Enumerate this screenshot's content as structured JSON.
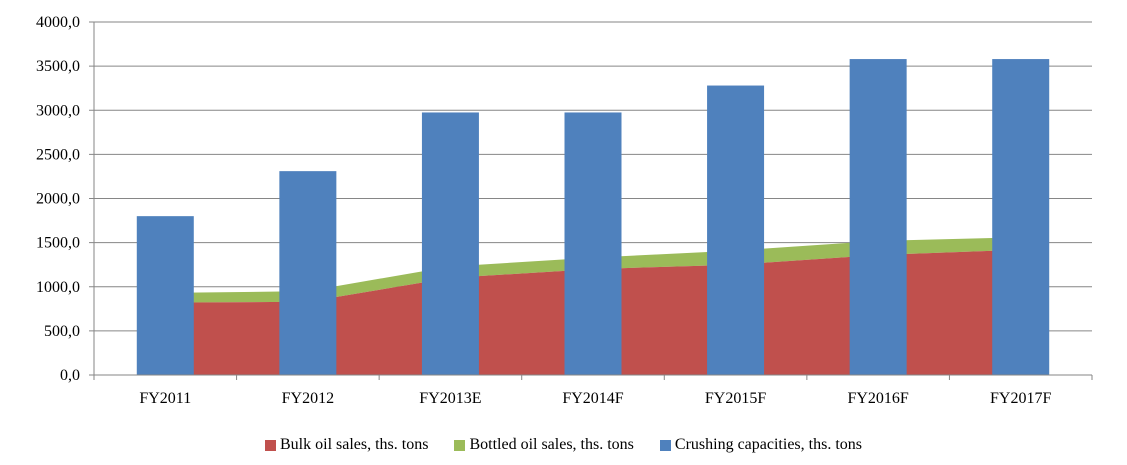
{
  "chart_data": {
    "type": "bar",
    "categories": [
      "FY2011",
      "FY2012",
      "FY2013E",
      "FY2014F",
      "FY2015F",
      "FY2016F",
      "FY2017F"
    ],
    "series": [
      {
        "name": "Bulk oil sales, ths. tons",
        "chart_type": "area",
        "color": "#C0504D",
        "values": [
          820,
          830,
          1100,
          1200,
          1250,
          1360,
          1420
        ]
      },
      {
        "name": "Bottled oil sales, ths. tons",
        "chart_type": "area",
        "color": "#9BBB59",
        "values": [
          110,
          120,
          130,
          130,
          160,
          160,
          140
        ]
      },
      {
        "name": "Crushing capacities, ths. tons",
        "chart_type": "bar",
        "color": "#4F81BD",
        "values": [
          1800,
          2310,
          2975,
          2975,
          3280,
          3580,
          3580
        ]
      }
    ],
    "stacked_areas": true,
    "yticks": [
      "0,0",
      "500,0",
      "1000,0",
      "1500,0",
      "2000,0",
      "2500,0",
      "3000,0",
      "3500,0",
      "4000,0"
    ],
    "ylim": [
      0,
      4000
    ],
    "ystep": 500,
    "grid": true,
    "legend_position": "bottom",
    "title": "",
    "xlabel": "",
    "ylabel": ""
  }
}
